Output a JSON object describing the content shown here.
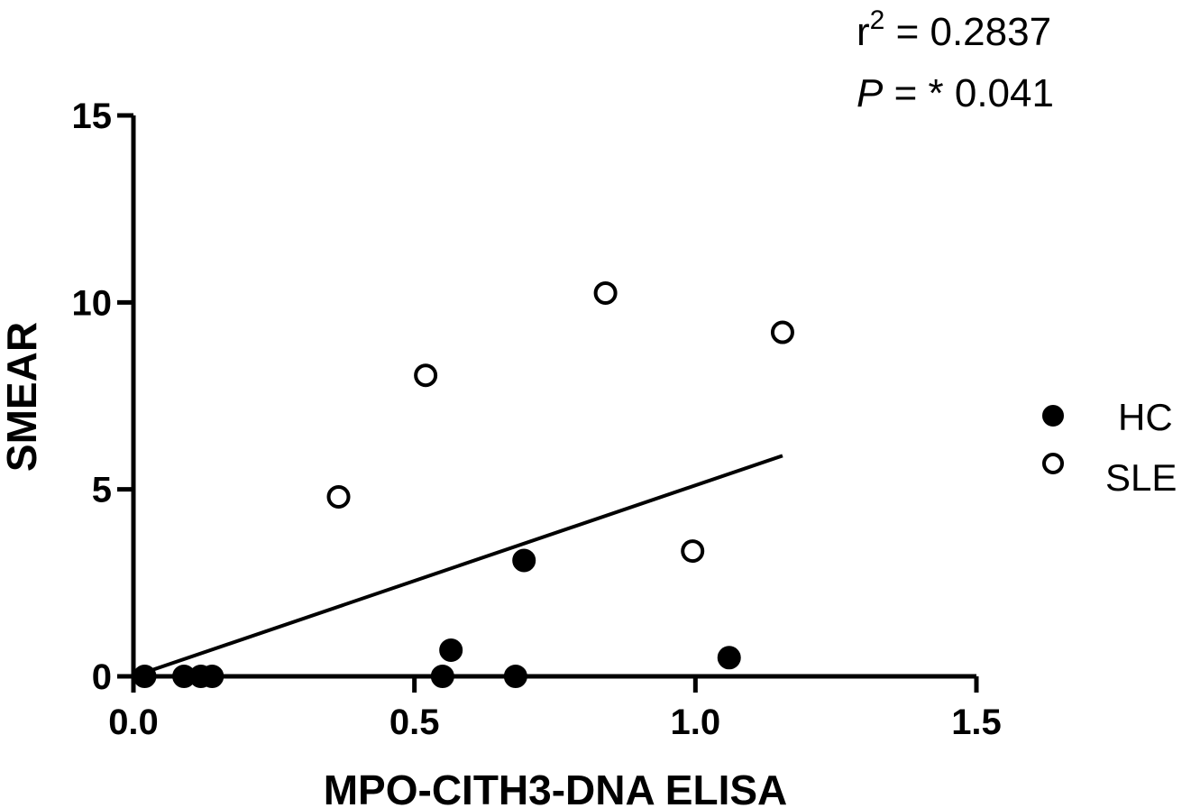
{
  "chart_data": {
    "type": "scatter",
    "title": "",
    "xlabel": "MPO-CITH3-DNA ELISA",
    "ylabel": "SMEAR",
    "xlim": [
      0,
      1.5
    ],
    "ylim": [
      0,
      15
    ],
    "xticks": [
      "0.0",
      "0.5",
      "1.0",
      "1.5"
    ],
    "xtick_values": [
      0,
      0.5,
      1.0,
      1.5
    ],
    "yticks": [
      "0",
      "5",
      "10",
      "15"
    ],
    "ytick_values": [
      0,
      5,
      10,
      15
    ],
    "grid": false,
    "legend_position": "right",
    "series": [
      {
        "name": "HC",
        "marker": "filled-circle",
        "color": "#000000",
        "x": [
          0.02,
          0.09,
          0.12,
          0.14,
          0.55,
          0.565,
          0.68,
          0.695,
          1.06
        ],
        "y": [
          0,
          0,
          0,
          0,
          0,
          0.7,
          0,
          3.1,
          0.5
        ]
      },
      {
        "name": "SLE",
        "marker": "open-circle",
        "color": "#000000",
        "x": [
          0.365,
          0.52,
          0.84,
          0.995,
          1.155
        ],
        "y": [
          4.8,
          8.05,
          10.25,
          3.35,
          9.2
        ]
      }
    ],
    "regression_line": {
      "x": [
        0.0,
        1.155
      ],
      "y": [
        0.0,
        5.9
      ]
    },
    "annotations": {
      "r2_prefix": "r",
      "r2_exponent": "2",
      "r2_value": " = 0.2837",
      "p_label": "P",
      "p_value": " =  * 0.041"
    }
  }
}
